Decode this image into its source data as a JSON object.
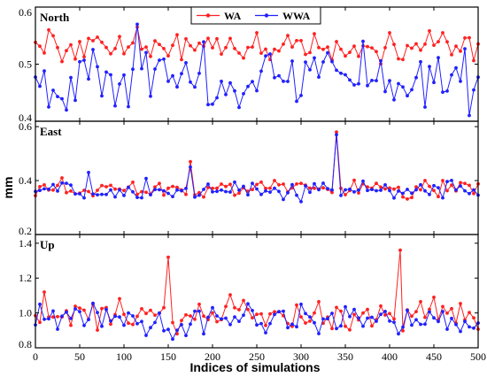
{
  "chart_data": {
    "type": "line",
    "xlabel": "Indices of simulations",
    "ylabel": "mm",
    "xlim": [
      0,
      500
    ],
    "xticks": [
      0,
      50,
      100,
      150,
      200,
      250,
      300,
      350,
      400,
      450,
      500
    ],
    "legend": {
      "placement": "top-center",
      "entries": [
        {
          "name": "WA",
          "color": "#ff2020"
        },
        {
          "name": "WWA",
          "color": "#2020ff"
        }
      ]
    },
    "panels": [
      {
        "title": "North",
        "ylim": [
          0.4,
          0.6
        ],
        "yticks": [
          0.4,
          0.5,
          0.6
        ],
        "ytick_labels": [
          "0.4",
          "0.5",
          "0.6"
        ],
        "series": [
          {
            "name": "WA",
            "color": "#ff2020",
            "base": 0.53,
            "amp": 0.012,
            "x": [
              15,
              115,
              250,
              400,
              460
            ],
            "values": [
              0.56,
              0.565,
              0.555,
              0.555,
              0.555
            ]
          },
          {
            "name": "WWA",
            "color": "#2020ff",
            "base": 0.475,
            "amp": 0.028,
            "x": [
              115,
              200,
              330,
              370,
              480
            ],
            "values": [
              0.57,
              0.43,
              0.52,
              0.54,
              0.47
            ]
          }
        ]
      },
      {
        "title": "East",
        "ylim": [
          0.2,
          0.62
        ],
        "yticks": [
          0.2,
          0.4,
          0.6
        ],
        "ytick_labels": [
          "0.2",
          "0.4",
          "0.6"
        ],
        "series": [
          {
            "name": "WA",
            "color": "#ff2020",
            "base": 0.37,
            "amp": 0.015,
            "x": [
              30,
              175,
              270,
              340,
              460
            ],
            "values": [
              0.41,
              0.47,
              0.4,
              0.58,
              0.4
            ]
          },
          {
            "name": "WWA",
            "color": "#2020ff",
            "base": 0.365,
            "amp": 0.016,
            "x": [
              60,
              175,
              280,
              340,
              480
            ],
            "values": [
              0.43,
              0.45,
              0.33,
              0.57,
              0.38
            ]
          }
        ]
      },
      {
        "title": "Up",
        "ylim": [
          0.8,
          1.45
        ],
        "yticks": [
          0.8,
          1.0,
          1.2,
          1.4
        ],
        "ytick_labels": [
          "0.8",
          "1.0",
          "1.2",
          "1.4"
        ],
        "series": [
          {
            "name": "WA",
            "color": "#ff2020",
            "base": 0.99,
            "amp": 0.04,
            "x": [
              10,
              150,
              160,
              412,
              450
            ],
            "values": [
              1.12,
              1.32,
              0.88,
              1.36,
              1.09
            ]
          },
          {
            "name": "WWA",
            "color": "#2020ff",
            "base": 0.96,
            "amp": 0.04,
            "x": [
              5,
              155,
              300,
              410,
              490
            ],
            "values": [
              1.05,
              0.85,
              1.05,
              0.88,
              0.92
            ]
          }
        ]
      }
    ]
  }
}
